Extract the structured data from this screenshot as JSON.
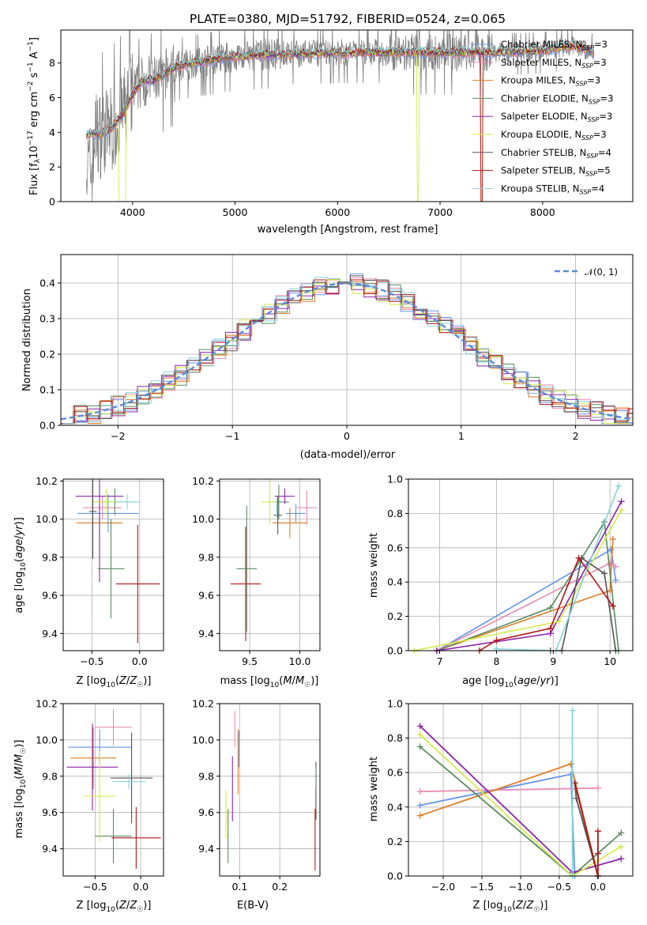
{
  "colors": [
    "#6495ed",
    "#e98bb4",
    "#e07b22",
    "#5a8a62",
    "#8e24aa",
    "#d4ea4b",
    "#545454",
    "#b11616",
    "#87d2d8"
  ],
  "chart_data": [
    {
      "type": "line",
      "title": "PLATE=0380, MJD=51792, FIBERID=0524, z=0.065",
      "xlabel": "wavelength [Angstrom, rest frame]",
      "ylabel": "Flux [f_λ 10^-17 erg cm^-2 s^-1 A^-1]",
      "xlim": [
        3300,
        8880
      ],
      "ylim": [
        0,
        9.9
      ],
      "xticks": [
        "4000",
        "5000",
        "6000",
        "7000",
        "8000"
      ],
      "yticks": [
        "0",
        "2",
        "4",
        "6",
        "8"
      ],
      "data_color": "#808080",
      "model_shape": {
        "x": [
          3550,
          3700,
          3800,
          3900,
          4000,
          4100,
          4200,
          4300,
          4400,
          4500,
          4700,
          4900,
          5100,
          5300,
          5500,
          6000,
          6500,
          7000,
          7500,
          8000,
          8300,
          8500
        ],
        "y": [
          3.9,
          3.9,
          4.3,
          5.0,
          6.2,
          7.0,
          7.0,
          7.3,
          7.7,
          7.9,
          8.1,
          8.3,
          8.4,
          8.5,
          8.5,
          8.6,
          8.6,
          8.6,
          8.6,
          8.7,
          9.0,
          8.6
        ]
      },
      "legend": [
        "Chabrier MILES, N_SSP=3",
        "Salpeter MILES, N_SSP=3",
        "Kroupa MILES, N_SSP=3",
        "Chabrier ELODIE, N_SSP=3",
        "Salpeter ELODIE, N_SSP=3",
        "Kroupa ELODIE, N_SSP=3",
        "Chabrier STELIB, N_SSP=4",
        "Salpeter STELIB, N_SSP=5",
        "Kroupa STELIB, N_SSP=4"
      ],
      "legend_position": "upper-right"
    },
    {
      "type": "line",
      "xlabel": "(data-model)/error",
      "ylabel": "Normed distribution",
      "xlim": [
        -2.5,
        2.5
      ],
      "ylim": [
        0,
        0.48
      ],
      "xticks": [
        -2,
        -1,
        0,
        1,
        2
      ],
      "xtick_labels": [
        "−2",
        "−1",
        "0",
        "1",
        "2"
      ],
      "yticks": [
        0.0,
        0.1,
        0.2,
        0.3,
        0.4
      ],
      "ytick_labels": [
        "0.0",
        "0.1",
        "0.2",
        "0.3",
        "0.4"
      ],
      "grid": true,
      "reference_label": "𝒩(0, 1)",
      "legend_position": "upper-right",
      "histogram_bin_width": 0.11
    },
    {
      "type": "scatter",
      "xlabel": "Z [log10(Z/Z☉)]",
      "ylabel": "age  [log10(age/yr)]",
      "xlim": [
        -0.8,
        0.25
      ],
      "ylim": [
        9.31,
        10.21
      ],
      "xticks": [
        -0.5,
        0.0
      ],
      "xtick_labels": [
        "−0.5",
        "0.0"
      ],
      "yticks": [
        9.4,
        9.6,
        9.8,
        10.0,
        10.2
      ],
      "ytick_labels": [
        "9.4",
        "9.6",
        "9.8",
        "10.0",
        "10.2"
      ],
      "points": [
        {
          "x": -0.33,
          "y": 10.03,
          "xerr": 0.32,
          "yerr": 0.1
        },
        {
          "x": -0.39,
          "y": 10.06,
          "xerr": 0.2,
          "yerr": 0.06
        },
        {
          "x": -0.42,
          "y": 9.98,
          "xerr": 0.24,
          "yerr": 0.07
        },
        {
          "x": -0.26,
          "y": 10.09,
          "xerr": 0.2,
          "yerr": 0.07
        },
        {
          "x": -0.42,
          "y": 10.12,
          "xerr": 0.25,
          "yerr": 0.45
        },
        {
          "x": -0.35,
          "y": 10.09,
          "xerr": 0.15,
          "yerr": 0.07
        },
        {
          "x": -0.49,
          "y": 10.04,
          "xerr": 0.04,
          "yerr": 0.25
        },
        {
          "x": -0.02,
          "y": 9.66,
          "xerr": 0.23,
          "yerr": 0.31
        },
        {
          "x": -0.13,
          "y": 10.09,
          "xerr": 0.13,
          "yerr": 0.04
        }
      ],
      "mid_line": {
        "x": -0.3,
        "y": 9.74,
        "xerr": 0.14,
        "yerr": 0.26
      }
    },
    {
      "type": "scatter",
      "xlabel": "mass [log10(M/M☉)]",
      "ylabel": "",
      "xlim": [
        9.2,
        10.2
      ],
      "ylim": [
        9.31,
        10.21
      ],
      "xticks": [
        9.5,
        10.0
      ],
      "xtick_labels": [
        "9.5",
        "10.0"
      ],
      "yticks": [
        9.4,
        9.6,
        9.8,
        10.0,
        10.2
      ],
      "ytick_labels": [
        "9.4",
        "9.6",
        "9.8",
        "10.0",
        "10.2"
      ],
      "points": [
        {
          "x": 9.96,
          "y": 10.03,
          "xerr": 0.1,
          "yerr": 0.05
        },
        {
          "x": 10.07,
          "y": 10.06,
          "xerr": 0.1,
          "yerr": 0.09
        },
        {
          "x": 9.9,
          "y": 9.98,
          "xerr": 0.17,
          "yerr": 0.08
        },
        {
          "x": 9.79,
          "y": 10.09,
          "xerr": 0.1,
          "yerr": 0.09
        },
        {
          "x": 9.85,
          "y": 10.12,
          "xerr": 0.1,
          "yerr": 0.04
        },
        {
          "x": 9.7,
          "y": 10.09,
          "xerr": 0.08,
          "yerr": 0.12
        },
        {
          "x": 9.78,
          "y": 10.02,
          "xerr": 0.04,
          "yerr": 0.1
        },
        {
          "x": 9.46,
          "y": 9.66,
          "xerr": 0.15,
          "yerr": 0.3
        },
        {
          "x": 9.77,
          "y": 10.06,
          "xerr": 0.01,
          "yerr": 0.05
        }
      ],
      "mid_line": {
        "x": 9.47,
        "y": 9.74,
        "xerr": 0.1,
        "yerr": 0.33
      }
    },
    {
      "type": "line",
      "xlabel": "age  [log10(age/yr)]",
      "ylabel": "mass weight",
      "xlim": [
        6.45,
        10.4
      ],
      "ylim": [
        0,
        1
      ],
      "xticks": [
        7,
        8,
        9,
        10
      ],
      "xtick_labels": [
        "7",
        "8",
        "9",
        "10"
      ],
      "yticks": [
        0.0,
        0.2,
        0.4,
        0.6,
        0.8,
        1.0
      ],
      "ytick_labels": [
        "0.0",
        "0.2",
        "0.4",
        "0.6",
        "0.8",
        "1.0"
      ],
      "grid": true,
      "series": [
        {
          "x": [
            6.95,
            10.02,
            10.1
          ],
          "y": [
            0.0,
            0.59,
            0.41
          ]
        },
        {
          "x": [
            6.95,
            10.0,
            10.1
          ],
          "y": [
            0.0,
            0.51,
            0.49
          ]
        },
        {
          "x": [
            6.95,
            10.0,
            10.05
          ],
          "y": [
            0.0,
            0.35,
            0.65
          ]
        },
        {
          "x": [
            6.95,
            8.95,
            9.9,
            10.15
          ],
          "y": [
            0.0,
            0.25,
            0.75,
            0.0
          ]
        },
        {
          "x": [
            6.95,
            8.95,
            10.2
          ],
          "y": [
            0.0,
            0.1,
            0.87
          ]
        },
        {
          "x": [
            6.55,
            9.1,
            10.2
          ],
          "y": [
            0.0,
            0.17,
            0.82
          ]
        },
        {
          "x": [
            8.95,
            9.15,
            9.5,
            9.9,
            10.1
          ],
          "y": [
            0.0,
            0.0,
            0.54,
            0.45,
            0.0
          ]
        },
        {
          "x": [
            7.7,
            8.0,
            8.95,
            9.45,
            10.05
          ],
          "y": [
            0.0,
            0.06,
            0.13,
            0.54,
            0.26
          ]
        },
        {
          "x": [
            8.0,
            9.05,
            10.15
          ],
          "y": [
            0.01,
            0.0,
            0.96
          ]
        }
      ]
    },
    {
      "type": "scatter",
      "xlabel": "Z [log10(Z/Z☉)]",
      "ylabel": "mass [log10(M/M☉)]",
      "xlim": [
        -0.85,
        0.25
      ],
      "ylim": [
        9.25,
        10.2
      ],
      "xticks": [
        -0.5,
        0.0
      ],
      "xtick_labels": [
        "−0.5",
        "0.0"
      ],
      "yticks": [
        9.4,
        9.6,
        9.8,
        10.0,
        10.2
      ],
      "ytick_labels": [
        "9.4",
        "9.6",
        "9.8",
        "10.0",
        "10.2"
      ],
      "points": [
        {
          "x": -0.45,
          "y": 9.96,
          "xerr": 0.35,
          "yerr": 0.1
        },
        {
          "x": -0.3,
          "y": 10.07,
          "xerr": 0.2,
          "yerr": 0.1
        },
        {
          "x": -0.52,
          "y": 9.9,
          "xerr": 0.25,
          "yerr": 0.17
        },
        {
          "x": -0.3,
          "y": 9.47,
          "xerr": 0.2,
          "yerr": 0.15
        },
        {
          "x": -0.53,
          "y": 9.85,
          "xerr": 0.28,
          "yerr": 0.24
        },
        {
          "x": -0.45,
          "y": 9.69,
          "xerr": 0.18,
          "yerr": 0.25
        },
        {
          "x": -0.1,
          "y": 9.79,
          "xerr": 0.23,
          "yerr": 0.25
        },
        {
          "x": -0.05,
          "y": 9.46,
          "xerr": 0.27,
          "yerr": 0.17
        },
        {
          "x": -0.13,
          "y": 9.77,
          "xerr": 0.18,
          "yerr": 0.04
        }
      ]
    },
    {
      "type": "scatter",
      "xlabel": "E(B-V)",
      "ylabel": "",
      "xlim": [
        0.05,
        0.3
      ],
      "ylim": [
        9.25,
        10.2
      ],
      "xticks": [
        0.1,
        0.2
      ],
      "xtick_labels": [
        "0.1",
        "0.2"
      ],
      "yticks": [
        9.4,
        9.6,
        9.8,
        10.0,
        10.2
      ],
      "ytick_labels": [
        "9.4",
        "9.6",
        "9.8",
        "10.0",
        "10.2"
      ],
      "points": [
        {
          "x": 0.098,
          "y": 9.95,
          "yerr": 0.1
        },
        {
          "x": 0.088,
          "y": 10.06,
          "yerr": 0.1
        },
        {
          "x": 0.096,
          "y": 9.88,
          "yerr": 0.18
        },
        {
          "x": 0.071,
          "y": 9.47,
          "yerr": 0.15
        },
        {
          "x": 0.082,
          "y": 9.73,
          "yerr": 0.18
        },
        {
          "x": 0.066,
          "y": 9.59,
          "yerr": 0.13
        },
        {
          "x": 0.29,
          "y": 9.72,
          "yerr": 0.16
        },
        {
          "x": 0.288,
          "y": 9.45,
          "yerr": 0.17
        },
        {
          "x": 0.289,
          "y": 9.79,
          "yerr": 0.06
        }
      ]
    },
    {
      "type": "line",
      "xlabel": "Z [log10(Z/Z☉)]",
      "ylabel": "mass weight",
      "xlim": [
        -2.45,
        0.45
      ],
      "ylim": [
        0,
        1
      ],
      "xticks": [
        -2.0,
        -1.5,
        -1.0,
        -0.5,
        0.0
      ],
      "xtick_labels": [
        "−2.0",
        "−1.5",
        "−1.0",
        "−0.5",
        "0.0"
      ],
      "yticks": [
        0.0,
        0.2,
        0.4,
        0.6,
        0.8,
        1.0
      ],
      "ytick_labels": [
        "0.0",
        "0.2",
        "0.4",
        "0.6",
        "0.8",
        "1.0"
      ],
      "grid": true,
      "series": [
        {
          "x": [
            -2.3,
            -0.35,
            -0.3
          ],
          "y": [
            0.41,
            0.59,
            0.0
          ]
        },
        {
          "x": [
            -2.3,
            0.0
          ],
          "y": [
            0.49,
            0.51
          ]
        },
        {
          "x": [
            -2.3,
            -0.35,
            0.0
          ],
          "y": [
            0.35,
            0.65,
            0.0
          ]
        },
        {
          "x": [
            -2.3,
            -0.33,
            0.3
          ],
          "y": [
            0.75,
            0.0,
            0.25
          ]
        },
        {
          "x": [
            -2.3,
            -0.33,
            0.3
          ],
          "y": [
            0.87,
            0.02,
            0.1
          ]
        },
        {
          "x": [
            -2.3,
            -0.33,
            0.3
          ],
          "y": [
            0.82,
            0.0,
            0.17
          ]
        },
        {
          "x": [
            -0.3,
            -0.28,
            0.0,
            0.0
          ],
          "y": [
            0.54,
            0.45,
            0.0,
            0.0
          ]
        },
        {
          "x": [
            -0.3,
            0.0,
            0.0,
            0.0
          ],
          "y": [
            0.54,
            0.0,
            0.26,
            0.13
          ]
        },
        {
          "x": [
            -0.33,
            -0.33
          ],
          "y": [
            0.96,
            0.0
          ]
        }
      ]
    }
  ]
}
